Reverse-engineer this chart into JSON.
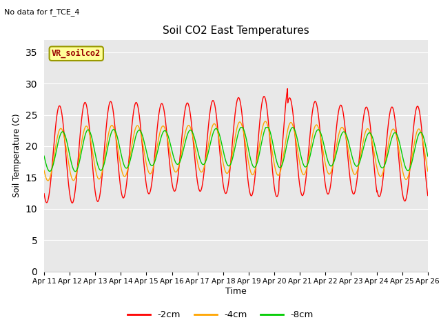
{
  "title": "Soil CO2 East Temperatures",
  "subtitle": "No data for f_TCE_4",
  "ylabel": "Soil Temperature (C)",
  "xlabel": "Time",
  "legend_label": "VR_soilco2",
  "ylim": [
    0,
    37
  ],
  "yticks": [
    0,
    5,
    10,
    15,
    20,
    25,
    30,
    35
  ],
  "xtick_labels": [
    "Apr 11",
    "Apr 12",
    "Apr 13",
    "Apr 14",
    "Apr 15",
    "Apr 16",
    "Apr 17",
    "Apr 18",
    "Apr 19",
    "Apr 20",
    "Apr 21",
    "Apr 22",
    "Apr 23",
    "Apr 24",
    "Apr 25",
    "Apr 26"
  ],
  "color_2cm": "#ff0000",
  "color_4cm": "#ffa500",
  "color_8cm": "#00cc00",
  "bg_color": "#e8e8e8",
  "box_facecolor": "#ffff99",
  "box_edgecolor": "#999900",
  "text_color_dark_red": "#990000",
  "n_points": 1500
}
